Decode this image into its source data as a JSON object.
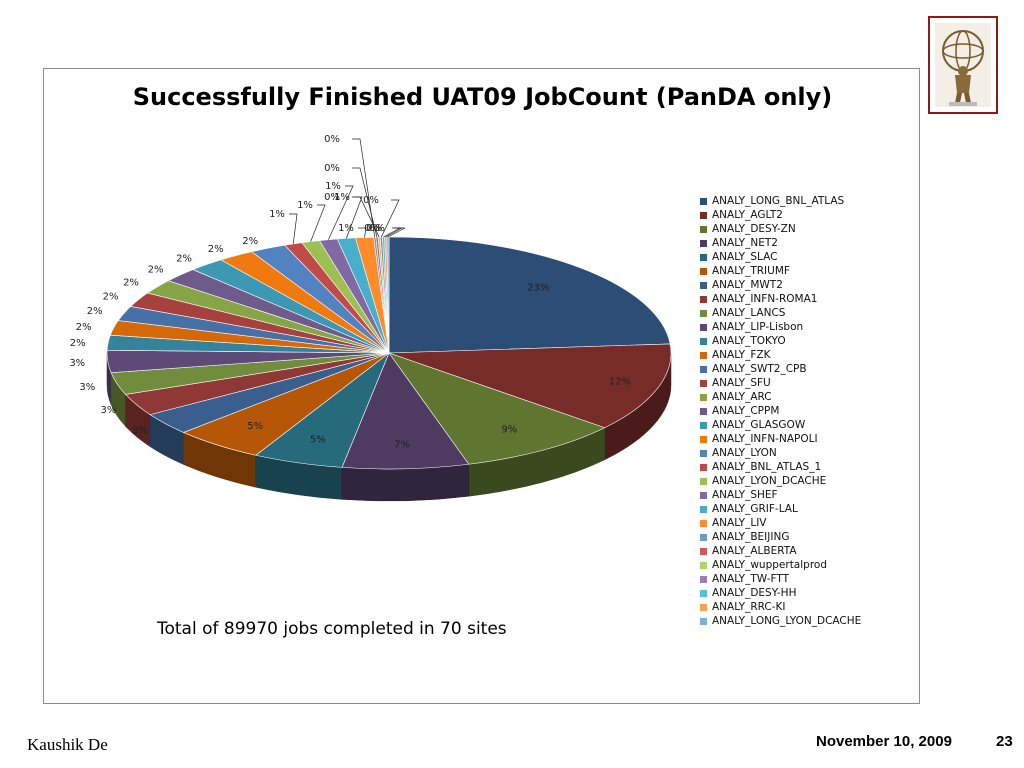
{
  "footer": {
    "author": "Kaushik De",
    "date": "November 10, 2009",
    "page": "23"
  },
  "logo": {
    "name": "atlas-logo"
  },
  "chart_data": {
    "type": "pie",
    "title": "Successfully Finished UAT09 JobCount (PanDA only)",
    "note": "Total of 89970 jobs completed in 70 sites",
    "legend_position": "right",
    "categories": [
      "ANALY_LONG_BNL_ATLAS",
      "ANALY_AGLT2",
      "ANALY_DESY-ZN",
      "ANALY_NET2",
      "ANALY_SLAC",
      "ANALY_TRIUMF",
      "ANALY_MWT2",
      "ANALY_INFN-ROMA1",
      "ANALY_LANCS",
      "ANALY_LIP-Lisbon",
      "ANALY_TOKYO",
      "ANALY_FZK",
      "ANALY_SWT2_CPB",
      "ANALY_SFU",
      "ANALY_ARC",
      "ANALY_CPPM",
      "ANALY_GLASGOW",
      "ANALY_INFN-NAPOLI",
      "ANALY_LYON",
      "ANALY_BNL_ATLAS_1",
      "ANALY_LYON_DCACHE",
      "ANALY_SHEF",
      "ANALY_GRIF-LAL",
      "ANALY_LIV",
      "ANALY_BEIJING",
      "ANALY_ALBERTA",
      "ANALY_wuppertalprod",
      "ANALY_TW-FTT",
      "ANALY_DESY-HH",
      "ANALY_RRC-KI",
      "ANALY_LONG_LYON_DCACHE"
    ],
    "values": [
      23,
      12,
      9,
      7,
      5,
      5,
      3,
      3,
      3,
      3,
      2,
      2,
      2,
      2,
      2,
      2,
      2,
      2,
      2,
      1,
      1,
      1,
      1,
      1,
      0,
      0,
      0,
      0,
      0,
      0,
      0
    ],
    "labels": [
      "23%",
      "12%",
      "9%",
      "7%",
      "5%",
      "5%",
      "3%",
      "3%",
      "3%",
      "3%",
      "2%",
      "2%",
      "2%",
      "2%",
      "2%",
      "2%",
      "2%",
      "2%",
      "2%",
      "1%",
      "1%",
      "1%",
      "1%",
      "1%",
      "0%",
      "0%",
      "0%",
      "0%",
      "0%",
      "0%",
      "0%"
    ],
    "colors": [
      "#2c4d75",
      "#772c2a",
      "#5f7530",
      "#4d3b62",
      "#276a7c",
      "#b65708",
      "#3a5f8f",
      "#8f3836",
      "#728c3d",
      "#5e4a77",
      "#34839a",
      "#d6680c",
      "#4670a6",
      "#a6413e",
      "#87a547",
      "#6f5a8c",
      "#3d99b3",
      "#f07a10",
      "#5282bf",
      "#c04b48",
      "#9cc052",
      "#8169a3",
      "#47aecc",
      "#ff8c28",
      "#6a9ad3",
      "#d05a57",
      "#b0d567",
      "#9480b8",
      "#58c0de",
      "#ffa050",
      "#80aee0"
    ]
  }
}
